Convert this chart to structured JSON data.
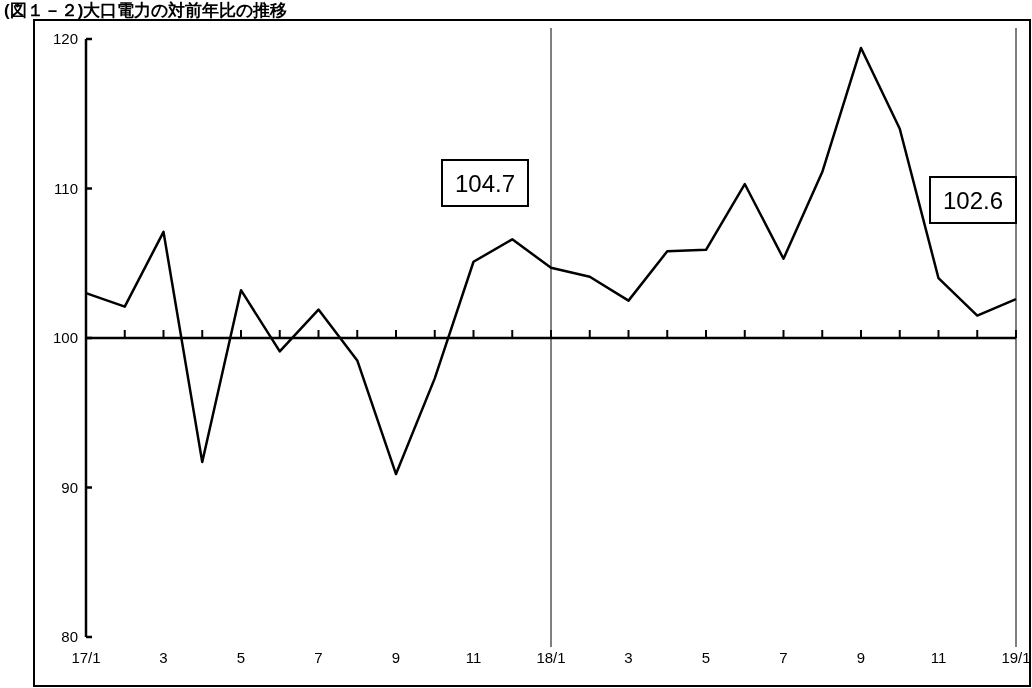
{
  "chart_data": {
    "type": "line",
    "title": "(図１－２)大口電力の対前年比の推移",
    "categories": [
      "17/1",
      null,
      "3",
      null,
      "5",
      null,
      "7",
      null,
      "9",
      null,
      "11",
      null,
      "18/1",
      null,
      "3",
      null,
      "5",
      null,
      "7",
      null,
      "9",
      null,
      "11",
      null,
      "19/1"
    ],
    "series": [
      {
        "color": "#000000",
        "values": [
          103.0,
          102.1,
          107.1,
          91.7,
          103.2,
          99.1,
          101.9,
          98.5,
          90.9,
          97.3,
          105.1,
          106.6,
          104.7,
          104.1,
          102.5,
          105.8,
          105.9,
          110.3,
          105.3,
          111.1,
          119.4,
          114.0,
          104.0,
          101.5,
          102.6
        ]
      }
    ],
    "ylim": [
      80,
      120
    ],
    "yticks": [
      80,
      90,
      100,
      110,
      120
    ],
    "grid": false,
    "marker": "none",
    "line_style": "solid",
    "ref_lines": [
      {
        "axis": "y",
        "value": 100,
        "color": "#000000"
      },
      {
        "axis": "x",
        "value": "18/1",
        "color": "#000000"
      },
      {
        "axis": "x",
        "value": "19/1",
        "color": "#000000"
      }
    ],
    "annotations": [
      "104.7",
      "102.6"
    ]
  }
}
